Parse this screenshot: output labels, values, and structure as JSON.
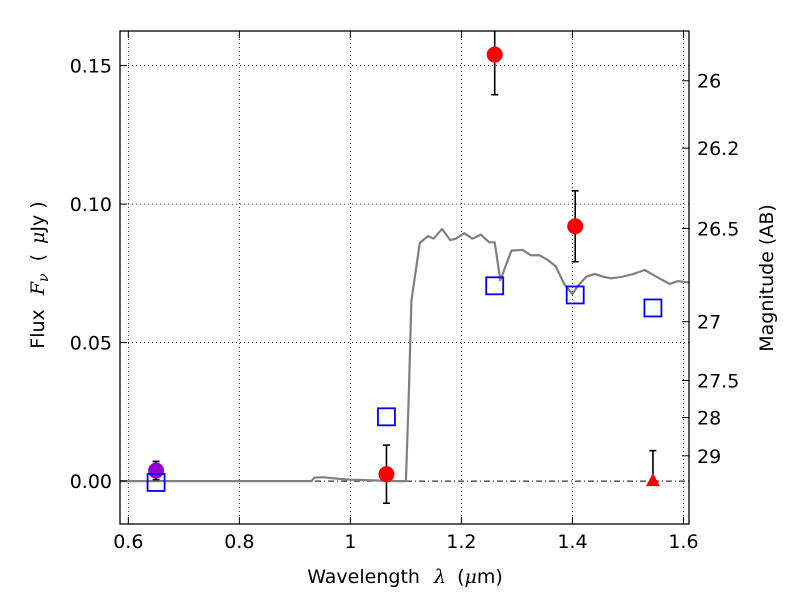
{
  "chart_data": {
    "type": "scatter",
    "title": "",
    "xlabel": "Wavelength",
    "xlabel_symbol": "λ",
    "xlabel_unit_open": "(",
    "xlabel_unit_mu": "μ",
    "xlabel_unit_rest": "m)",
    "ylabel": "Flux",
    "ylabel_symbol": "F",
    "ylabel_sub": "ν",
    "ylabel_unit_open": "(",
    "ylabel_unit_mu": "μ",
    "ylabel_unit_rest": "Jy )",
    "y2label": "Magnitude (AB)",
    "xlim": [
      0.585,
      1.61
    ],
    "ylim": [
      -0.0155,
      0.1625
    ],
    "grid": true,
    "xticks": [
      {
        "value": 0.6,
        "label": "0.6"
      },
      {
        "value": 0.8,
        "label": "0.8"
      },
      {
        "value": 1.0,
        "label": "1"
      },
      {
        "value": 1.2,
        "label": "1.2"
      },
      {
        "value": 1.4,
        "label": "1.4"
      },
      {
        "value": 1.6,
        "label": "1.6"
      }
    ],
    "yticks": [
      {
        "value": 0.0,
        "label": "0.00"
      },
      {
        "value": 0.05,
        "label": "0.05"
      },
      {
        "value": 0.1,
        "label": "0.10"
      },
      {
        "value": 0.15,
        "label": "0.15"
      }
    ],
    "y2ticks": [
      {
        "mag": 26,
        "label": "26"
      },
      {
        "mag": 26.2,
        "label": "26.2"
      },
      {
        "mag": 26.5,
        "label": "26.5"
      },
      {
        "mag": 27,
        "label": "27"
      },
      {
        "mag": 27.5,
        "label": "27.5"
      },
      {
        "mag": 28,
        "label": "28"
      },
      {
        "mag": 29,
        "label": "29"
      }
    ],
    "series": [
      {
        "name": "model_spectrum",
        "kind": "line",
        "color": "#808080",
        "x": [
          0.585,
          0.93,
          0.935,
          0.95,
          0.98,
          1.0,
          1.05,
          1.08,
          1.1,
          1.105,
          1.11,
          1.125,
          1.14,
          1.15,
          1.165,
          1.18,
          1.19,
          1.205,
          1.22,
          1.235,
          1.25,
          1.26,
          1.27,
          1.29,
          1.31,
          1.325,
          1.34,
          1.355,
          1.37,
          1.385,
          1.4,
          1.41,
          1.425,
          1.44,
          1.455,
          1.47,
          1.49,
          1.51,
          1.53,
          1.545,
          1.56,
          1.575,
          1.59,
          1.61
        ],
        "y": [
          0.0,
          0.0,
          0.0012,
          0.0014,
          0.0008,
          0.0005,
          0.0002,
          0.0,
          0.0,
          0.03,
          0.065,
          0.086,
          0.0885,
          0.0875,
          0.091,
          0.087,
          0.0875,
          0.0895,
          0.0875,
          0.089,
          0.0862,
          0.0862,
          0.0725,
          0.0832,
          0.0835,
          0.0815,
          0.0816,
          0.0799,
          0.0775,
          0.0712,
          0.0675,
          0.0705,
          0.0738,
          0.0748,
          0.0738,
          0.0732,
          0.0738,
          0.0748,
          0.0762,
          0.0745,
          0.0728,
          0.0712,
          0.0722,
          0.0717
        ]
      },
      {
        "name": "observed_red",
        "kind": "points",
        "marker": "circle",
        "color": "#ff0000",
        "points": [
          {
            "x": 1.065,
            "y": 0.0025,
            "err": 0.0105
          },
          {
            "x": 1.26,
            "y": 0.154,
            "err": 0.0145
          },
          {
            "x": 1.405,
            "y": 0.092,
            "err": 0.0128
          }
        ]
      },
      {
        "name": "observed_purple",
        "kind": "points",
        "marker": "circle",
        "color": "#9400d3",
        "points": [
          {
            "x": 0.65,
            "y": 0.0038,
            "err": 0.0033
          }
        ]
      },
      {
        "name": "upper_limit",
        "kind": "points",
        "marker": "triangle",
        "color": "#ff0000",
        "points": [
          {
            "x": 1.545,
            "y": 0.0,
            "err_top": 0.011
          }
        ]
      },
      {
        "name": "model_photometry",
        "kind": "points",
        "marker": "square",
        "color": "#0000ff",
        "points": [
          {
            "x": 0.65,
            "y": -0.0005
          },
          {
            "x": 1.065,
            "y": 0.0232
          },
          {
            "x": 1.26,
            "y": 0.0705
          },
          {
            "x": 1.405,
            "y": 0.0672
          },
          {
            "x": 1.545,
            "y": 0.0625
          }
        ]
      }
    ]
  }
}
